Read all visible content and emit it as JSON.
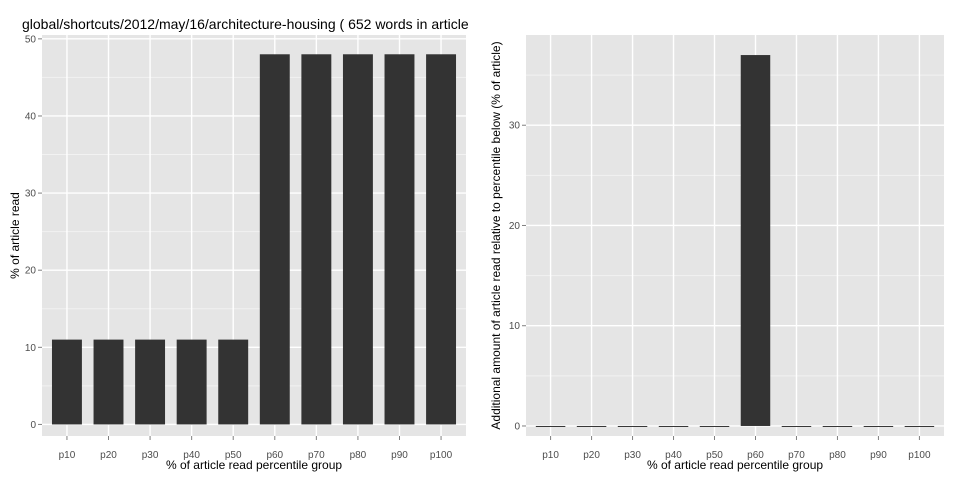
{
  "title": "global/shortcuts/2012/may/16/architecture-housing ( 652 words in article",
  "colors": {
    "panel_bg": "#e5e5e5",
    "grid_major": "#ffffff",
    "grid_minor": "#f2f2f2",
    "bar": "#333333"
  },
  "chart_data": [
    {
      "type": "bar",
      "categories": [
        "p10",
        "p20",
        "p30",
        "p40",
        "p50",
        "p60",
        "p70",
        "p80",
        "p90",
        "p100"
      ],
      "values": [
        11,
        11,
        11,
        11,
        11,
        48,
        48,
        48,
        48,
        48
      ],
      "xlabel": "% of article read percentile group",
      "ylabel": "% of article read",
      "ylim": [
        -1.5,
        50.5
      ],
      "yticks": [
        0,
        10,
        20,
        30,
        40,
        50
      ],
      "grid": true
    },
    {
      "type": "bar",
      "categories": [
        "p10",
        "p20",
        "p30",
        "p40",
        "p50",
        "p60",
        "p70",
        "p80",
        "p90",
        "p100"
      ],
      "values": [
        0,
        0,
        0,
        0,
        0,
        37,
        0,
        0,
        0,
        0
      ],
      "xlabel": "% of article read percentile group",
      "ylabel": "Additional amount of article read relative to percentile below (% of article)",
      "ylim": [
        -1.0,
        39.0
      ],
      "yticks": [
        0,
        10,
        20,
        30
      ],
      "grid": true
    }
  ]
}
